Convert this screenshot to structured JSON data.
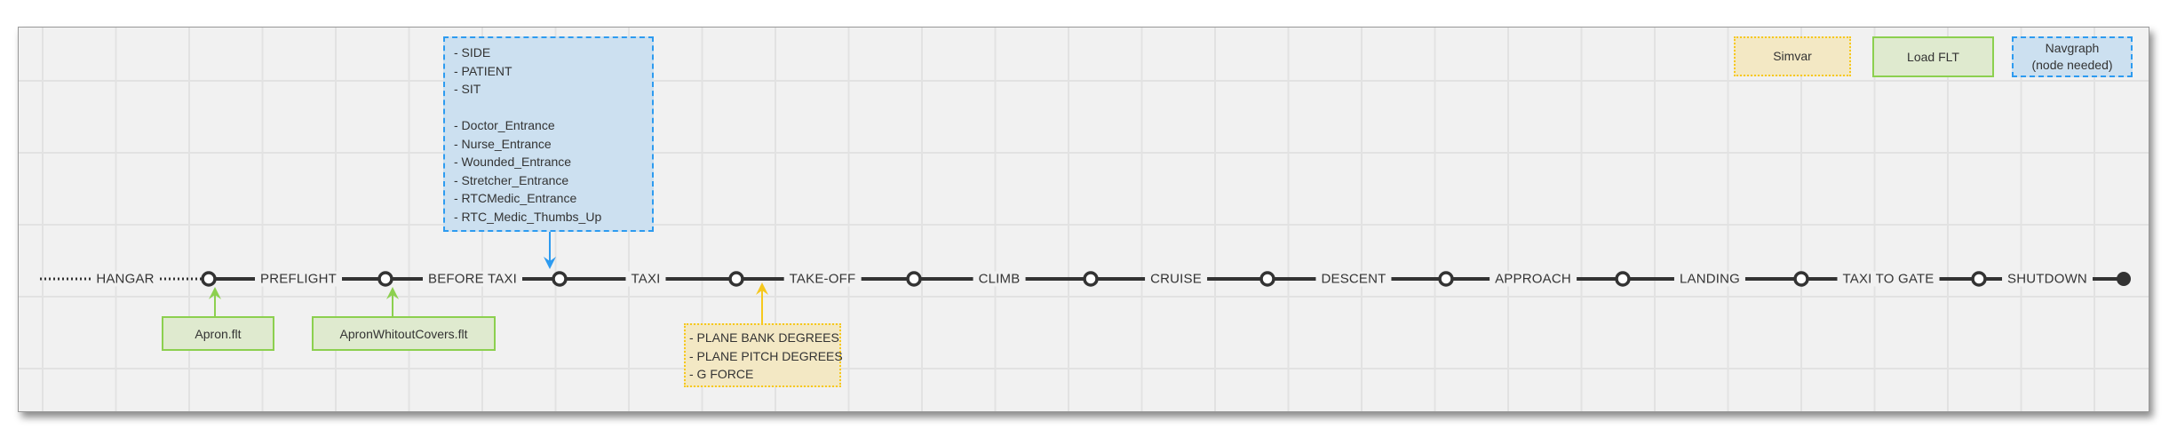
{
  "timeline": {
    "stages": [
      "HANGAR",
      "PREFLIGHT",
      "BEFORE TAXI",
      "TAXI",
      "TAKE-OFF",
      "CLIMB",
      "CRUISE",
      "DESCENT",
      "APPROACH",
      "LANDING",
      "TAXI TO GATE",
      "SHUTDOWN"
    ]
  },
  "navgraph_box": {
    "items": [
      "- SIDE",
      "- PATIENT",
      "- SIT",
      "",
      "- Doctor_Entrance",
      "- Nurse_Entrance",
      "- Wounded_Entrance",
      "- Stretcher_Entrance",
      "- RTCMedic_Entrance",
      "- RTC_Medic_Thumbs_Up"
    ]
  },
  "simvar_box": {
    "items": [
      "- PLANE BANK DEGREES",
      "- PLANE PITCH DEGREES",
      "- G FORCE"
    ]
  },
  "flt_boxes": [
    "Apron.flt",
    "ApronWhitoutCovers.flt"
  ],
  "legend": {
    "simvar": "Simvar",
    "load_flt": "Load FLT",
    "navgraph_line1": "Navgraph",
    "navgraph_line2": "(node needed)"
  },
  "colors": {
    "navgraph": "#2d9bf0",
    "load_flt": "#8cd04f",
    "simvar": "#f6c81e",
    "timeline": "#333333"
  }
}
